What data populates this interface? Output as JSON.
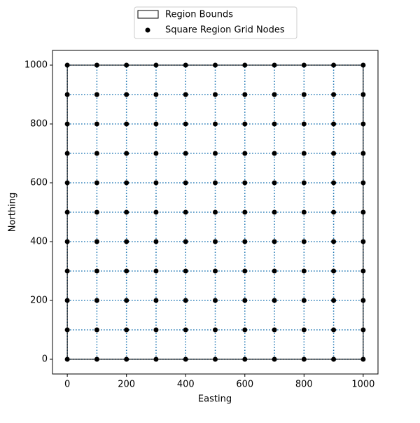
{
  "chart_data": {
    "type": "scatter",
    "xlabel": "Easting",
    "ylabel": "Northing",
    "xlim": [
      -50,
      1050
    ],
    "ylim": [
      -50,
      1050
    ],
    "xticks": [
      0,
      200,
      400,
      600,
      800,
      1000
    ],
    "yticks": [
      0,
      200,
      400,
      600,
      800,
      1000
    ],
    "nodes": {
      "name": "Square Region Grid Nodes",
      "color": "#000000",
      "x": [
        0,
        100,
        200,
        300,
        400,
        500,
        600,
        700,
        800,
        900,
        1000
      ],
      "y": [
        0,
        100,
        200,
        300,
        400,
        500,
        600,
        700,
        800,
        900,
        1000
      ]
    },
    "region": {
      "name": "Region Bounds",
      "color": "#000000",
      "x": [
        0,
        1000
      ],
      "y": [
        0,
        1000
      ]
    },
    "grid_line_color": "#1f77b4",
    "legend": "upper center"
  }
}
